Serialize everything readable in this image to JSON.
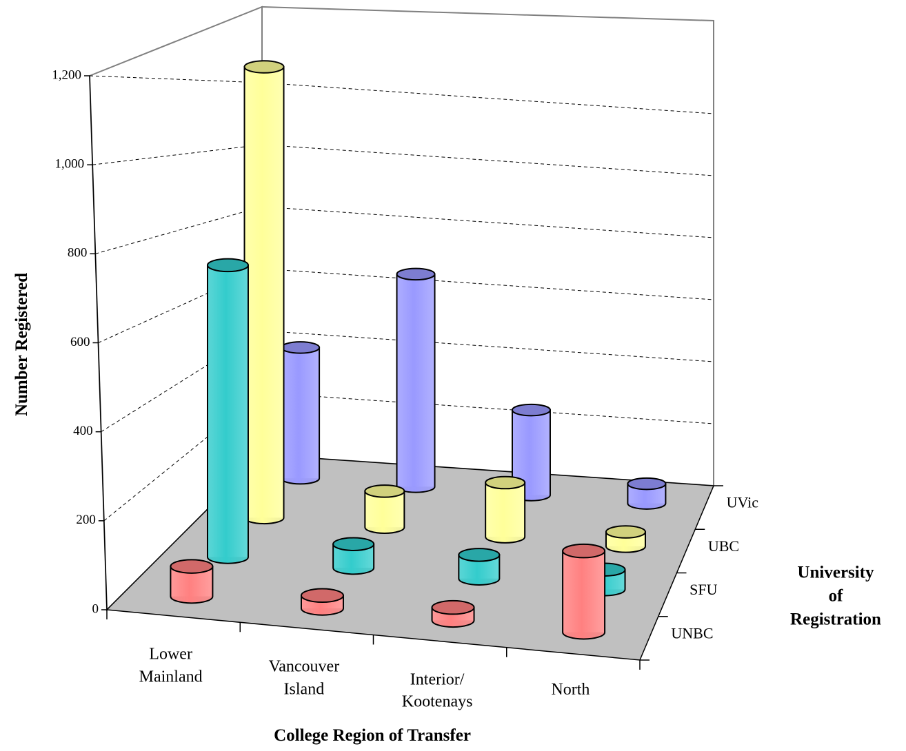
{
  "chart_data": {
    "type": "bar3d",
    "x_label": "College Region of Transfer",
    "y_label": "Number Registered",
    "z_label": "University\nof Registration",
    "categories": [
      "Lower\nMainland",
      "Vancouver\nIsland",
      "Interior/\nKootenays",
      "North"
    ],
    "series": [
      {
        "name": "UNBC",
        "color": "#ff8080",
        "values": [
          70,
          30,
          30,
          190
        ]
      },
      {
        "name": "SFU",
        "color": "#33cccc",
        "values": [
          740,
          60,
          60,
          50
        ]
      },
      {
        "name": "UBC",
        "color": "#ffff99",
        "values": [
          1250,
          100,
          150,
          40
        ]
      },
      {
        "name": "UVic",
        "color": "#9999ff",
        "values": [
          400,
          650,
          260,
          60
        ]
      }
    ],
    "ylim": [
      0,
      1200
    ],
    "yticks": [
      0,
      200,
      400,
      600,
      800,
      {
        "value": 1000,
        "label": "1,000"
      },
      {
        "value": 1200,
        "label": "1,200"
      }
    ],
    "grid": true
  }
}
